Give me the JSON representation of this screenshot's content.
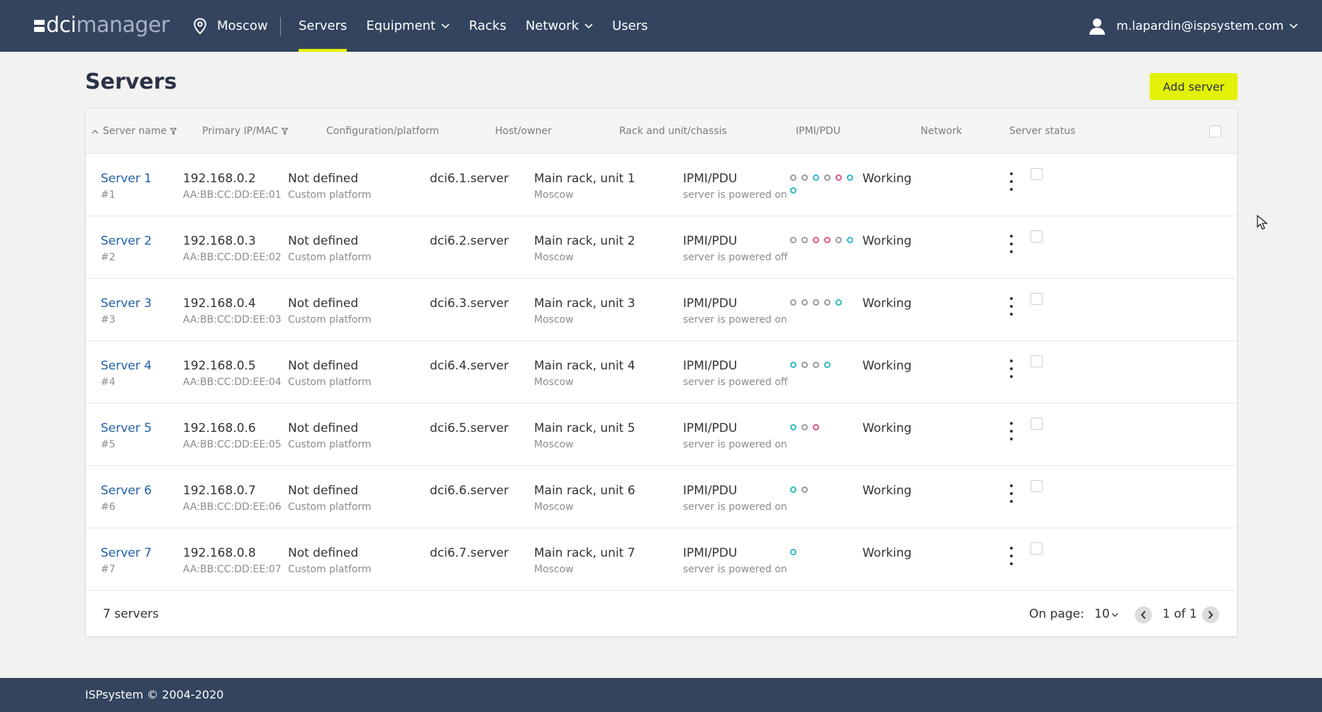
{
  "header": {
    "logo_primary": "dci",
    "logo_secondary": "manager",
    "location": "Moscow",
    "nav": [
      {
        "label": "Servers",
        "active": true,
        "dropdown": false
      },
      {
        "label": "Equipment",
        "active": false,
        "dropdown": true
      },
      {
        "label": "Racks",
        "active": false,
        "dropdown": false
      },
      {
        "label": "Network",
        "active": false,
        "dropdown": true
      },
      {
        "label": "Users",
        "active": false,
        "dropdown": false
      }
    ],
    "user_email": "m.lapardin@ispsystem.com"
  },
  "page": {
    "title": "Servers",
    "add_button": "Add server"
  },
  "table": {
    "columns": {
      "name": "Server name",
      "ip": "Primary IP/MAC",
      "config": "Configuration/platform",
      "host": "Host/owner",
      "rack": "Rack and unit/chassis",
      "ipmi": "IPMI/PDU",
      "network": "Network",
      "status": "Server status"
    },
    "rows": [
      {
        "name": "Server 1",
        "id": "#1",
        "ip": "192.168.0.2",
        "mac": "AA:BB:CC:DD:EE:01",
        "config": "Not defined",
        "platform": "Custom platform",
        "host": "dci6.1.server",
        "rack": "Main rack, unit 1",
        "location": "Moscow",
        "ipmi": "IPMI/PDU",
        "power": "server is powered on",
        "status": "Working",
        "ports": [
          "gray",
          "gray",
          "teal",
          "gray",
          "pink",
          "teal",
          "teal"
        ]
      },
      {
        "name": "Server 2",
        "id": "#2",
        "ip": "192.168.0.3",
        "mac": "AA:BB:CC:DD:EE:02",
        "config": "Not defined",
        "platform": "Custom platform",
        "host": "dci6.2.server",
        "rack": "Main rack, unit 2",
        "location": "Moscow",
        "ipmi": "IPMI/PDU",
        "power": "server is powered off",
        "status": "Working",
        "ports": [
          "gray",
          "gray",
          "pink",
          "pink",
          "gray",
          "teal"
        ]
      },
      {
        "name": "Server 3",
        "id": "#3",
        "ip": "192.168.0.4",
        "mac": "AA:BB:CC:DD:EE:03",
        "config": "Not defined",
        "platform": "Custom platform",
        "host": "dci6.3.server",
        "rack": "Main rack, unit 3",
        "location": "Moscow",
        "ipmi": "IPMI/PDU",
        "power": "server is powered on",
        "status": "Working",
        "ports": [
          "gray",
          "gray",
          "gray",
          "gray",
          "teal"
        ]
      },
      {
        "name": "Server 4",
        "id": "#4",
        "ip": "192.168.0.5",
        "mac": "AA:BB:CC:DD:EE:04",
        "config": "Not defined",
        "platform": "Custom platform",
        "host": "dci6.4.server",
        "rack": "Main rack, unit 4",
        "location": "Moscow",
        "ipmi": "IPMI/PDU",
        "power": "server is powered off",
        "status": "Working",
        "ports": [
          "teal",
          "gray",
          "gray",
          "teal"
        ]
      },
      {
        "name": "Server 5",
        "id": "#5",
        "ip": "192.168.0.6",
        "mac": "AA:BB:CC:DD:EE:05",
        "config": "Not defined",
        "platform": "Custom platform",
        "host": "dci6.5.server",
        "rack": "Main rack, unit 5",
        "location": "Moscow",
        "ipmi": "IPMI/PDU",
        "power": "server is powered on",
        "status": "Working",
        "ports": [
          "teal",
          "gray",
          "pink"
        ]
      },
      {
        "name": "Server 6",
        "id": "#6",
        "ip": "192.168.0.7",
        "mac": "AA:BB:CC:DD:EE:06",
        "config": "Not defined",
        "platform": "Custom platform",
        "host": "dci6.6.server",
        "rack": "Main rack, unit 6",
        "location": "Moscow",
        "ipmi": "IPMI/PDU",
        "power": "server is powered on",
        "status": "Working",
        "ports": [
          "teal",
          "gray"
        ]
      },
      {
        "name": "Server 7",
        "id": "#7",
        "ip": "192.168.0.8",
        "mac": "AA:BB:CC:DD:EE:07",
        "config": "Not defined",
        "platform": "Custom platform",
        "host": "dci6.7.server",
        "rack": "Main rack, unit 7",
        "location": "Moscow",
        "ipmi": "IPMI/PDU",
        "power": "server is powered on",
        "status": "Working",
        "ports": [
          "teal"
        ]
      }
    ]
  },
  "footer_bar": {
    "count": "7 servers",
    "on_page_label": "On page:",
    "page_size": "10",
    "page_info": "1 of 1"
  },
  "copyright": "ISPsystem © 2004-2020",
  "colors": {
    "header_bg": "#34435e",
    "accent": "#e3f106",
    "link": "#1f5fa8",
    "port_gray": "#9a9a9a",
    "port_teal": "#2fb8c6",
    "port_pink": "#e8508a"
  }
}
